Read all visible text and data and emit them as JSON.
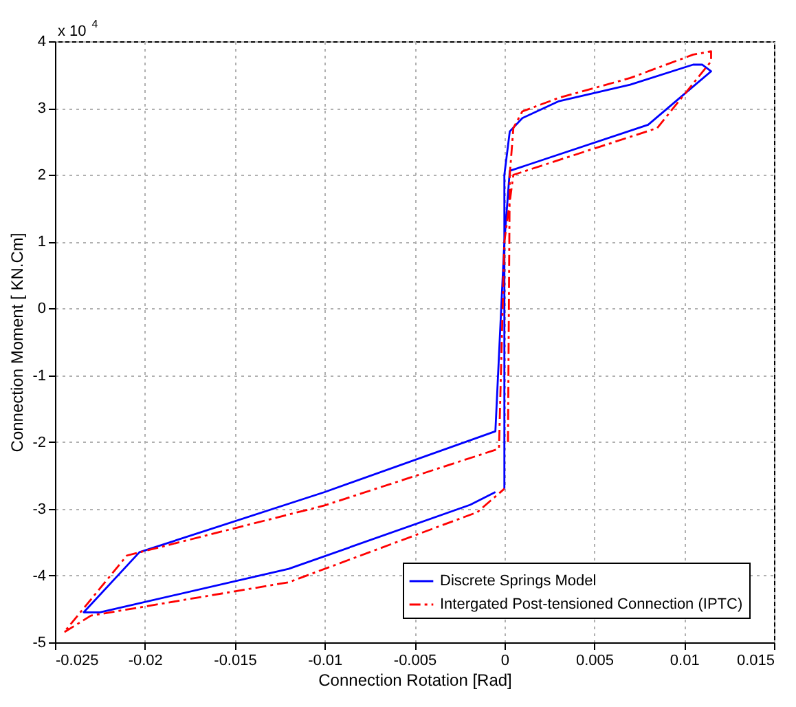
{
  "chart_data": {
    "type": "line",
    "xlabel": "Connection Rotation [Rad]",
    "ylabel": "Connection Moment [ KN.Cm]",
    "annotations": [
      "x 10$^{4}$"
    ],
    "xlim": [
      -0.025,
      0.015
    ],
    "xticks": [
      -0.025,
      -0.02,
      -0.015,
      -0.01,
      -0.005,
      0,
      0.005,
      0.01,
      0.015
    ],
    "ylim": [
      -5,
      4
    ],
    "yticks": [
      -5,
      -4,
      -3,
      -2,
      -1,
      0,
      1,
      2,
      3,
      4
    ],
    "grid": true,
    "legend": "bottom right",
    "series": [
      {
        "name": "Discrete Springs Model",
        "color": "#0000ff",
        "line_style": "solid",
        "x": [
          0,
          0,
          0.0003,
          0.001,
          0.003,
          0.007,
          0.0105,
          0.011,
          0.0115,
          0.008,
          0.0003,
          0,
          -0.0005,
          -0.01,
          -0.0203,
          -0.0234,
          -0.0225,
          -0.012,
          -0.0019,
          -0.0005
        ],
        "values": [
          -2.7,
          2.0,
          2.65,
          2.85,
          3.1,
          3.35,
          3.65,
          3.65,
          3.55,
          2.75,
          2.06,
          1.0,
          -1.84,
          -2.75,
          -3.65,
          -4.55,
          -4.55,
          -3.9,
          -2.94,
          -2.75
        ]
      },
      {
        "name": "Intergated Post-tensioned Connection (IPTC)",
        "color": "#ff0000",
        "line_style": "dashed",
        "x": [
          0.0002,
          0.0003,
          0.0005,
          0.001,
          0.003,
          0.007,
          0.0105,
          0.0115,
          0.0115,
          0.0085,
          0.0005,
          0,
          -0.0003,
          -0.01,
          -0.021,
          -0.0245,
          -0.023,
          -0.012,
          -0.0015,
          0
        ],
        "values": [
          -2.0,
          2.0,
          2.7,
          2.95,
          3.15,
          3.45,
          3.8,
          3.85,
          3.7,
          2.7,
          2.0,
          1.0,
          -2.1,
          -2.95,
          -3.7,
          -4.85,
          -4.6,
          -4.1,
          -3.05,
          -2.7
        ]
      }
    ]
  }
}
